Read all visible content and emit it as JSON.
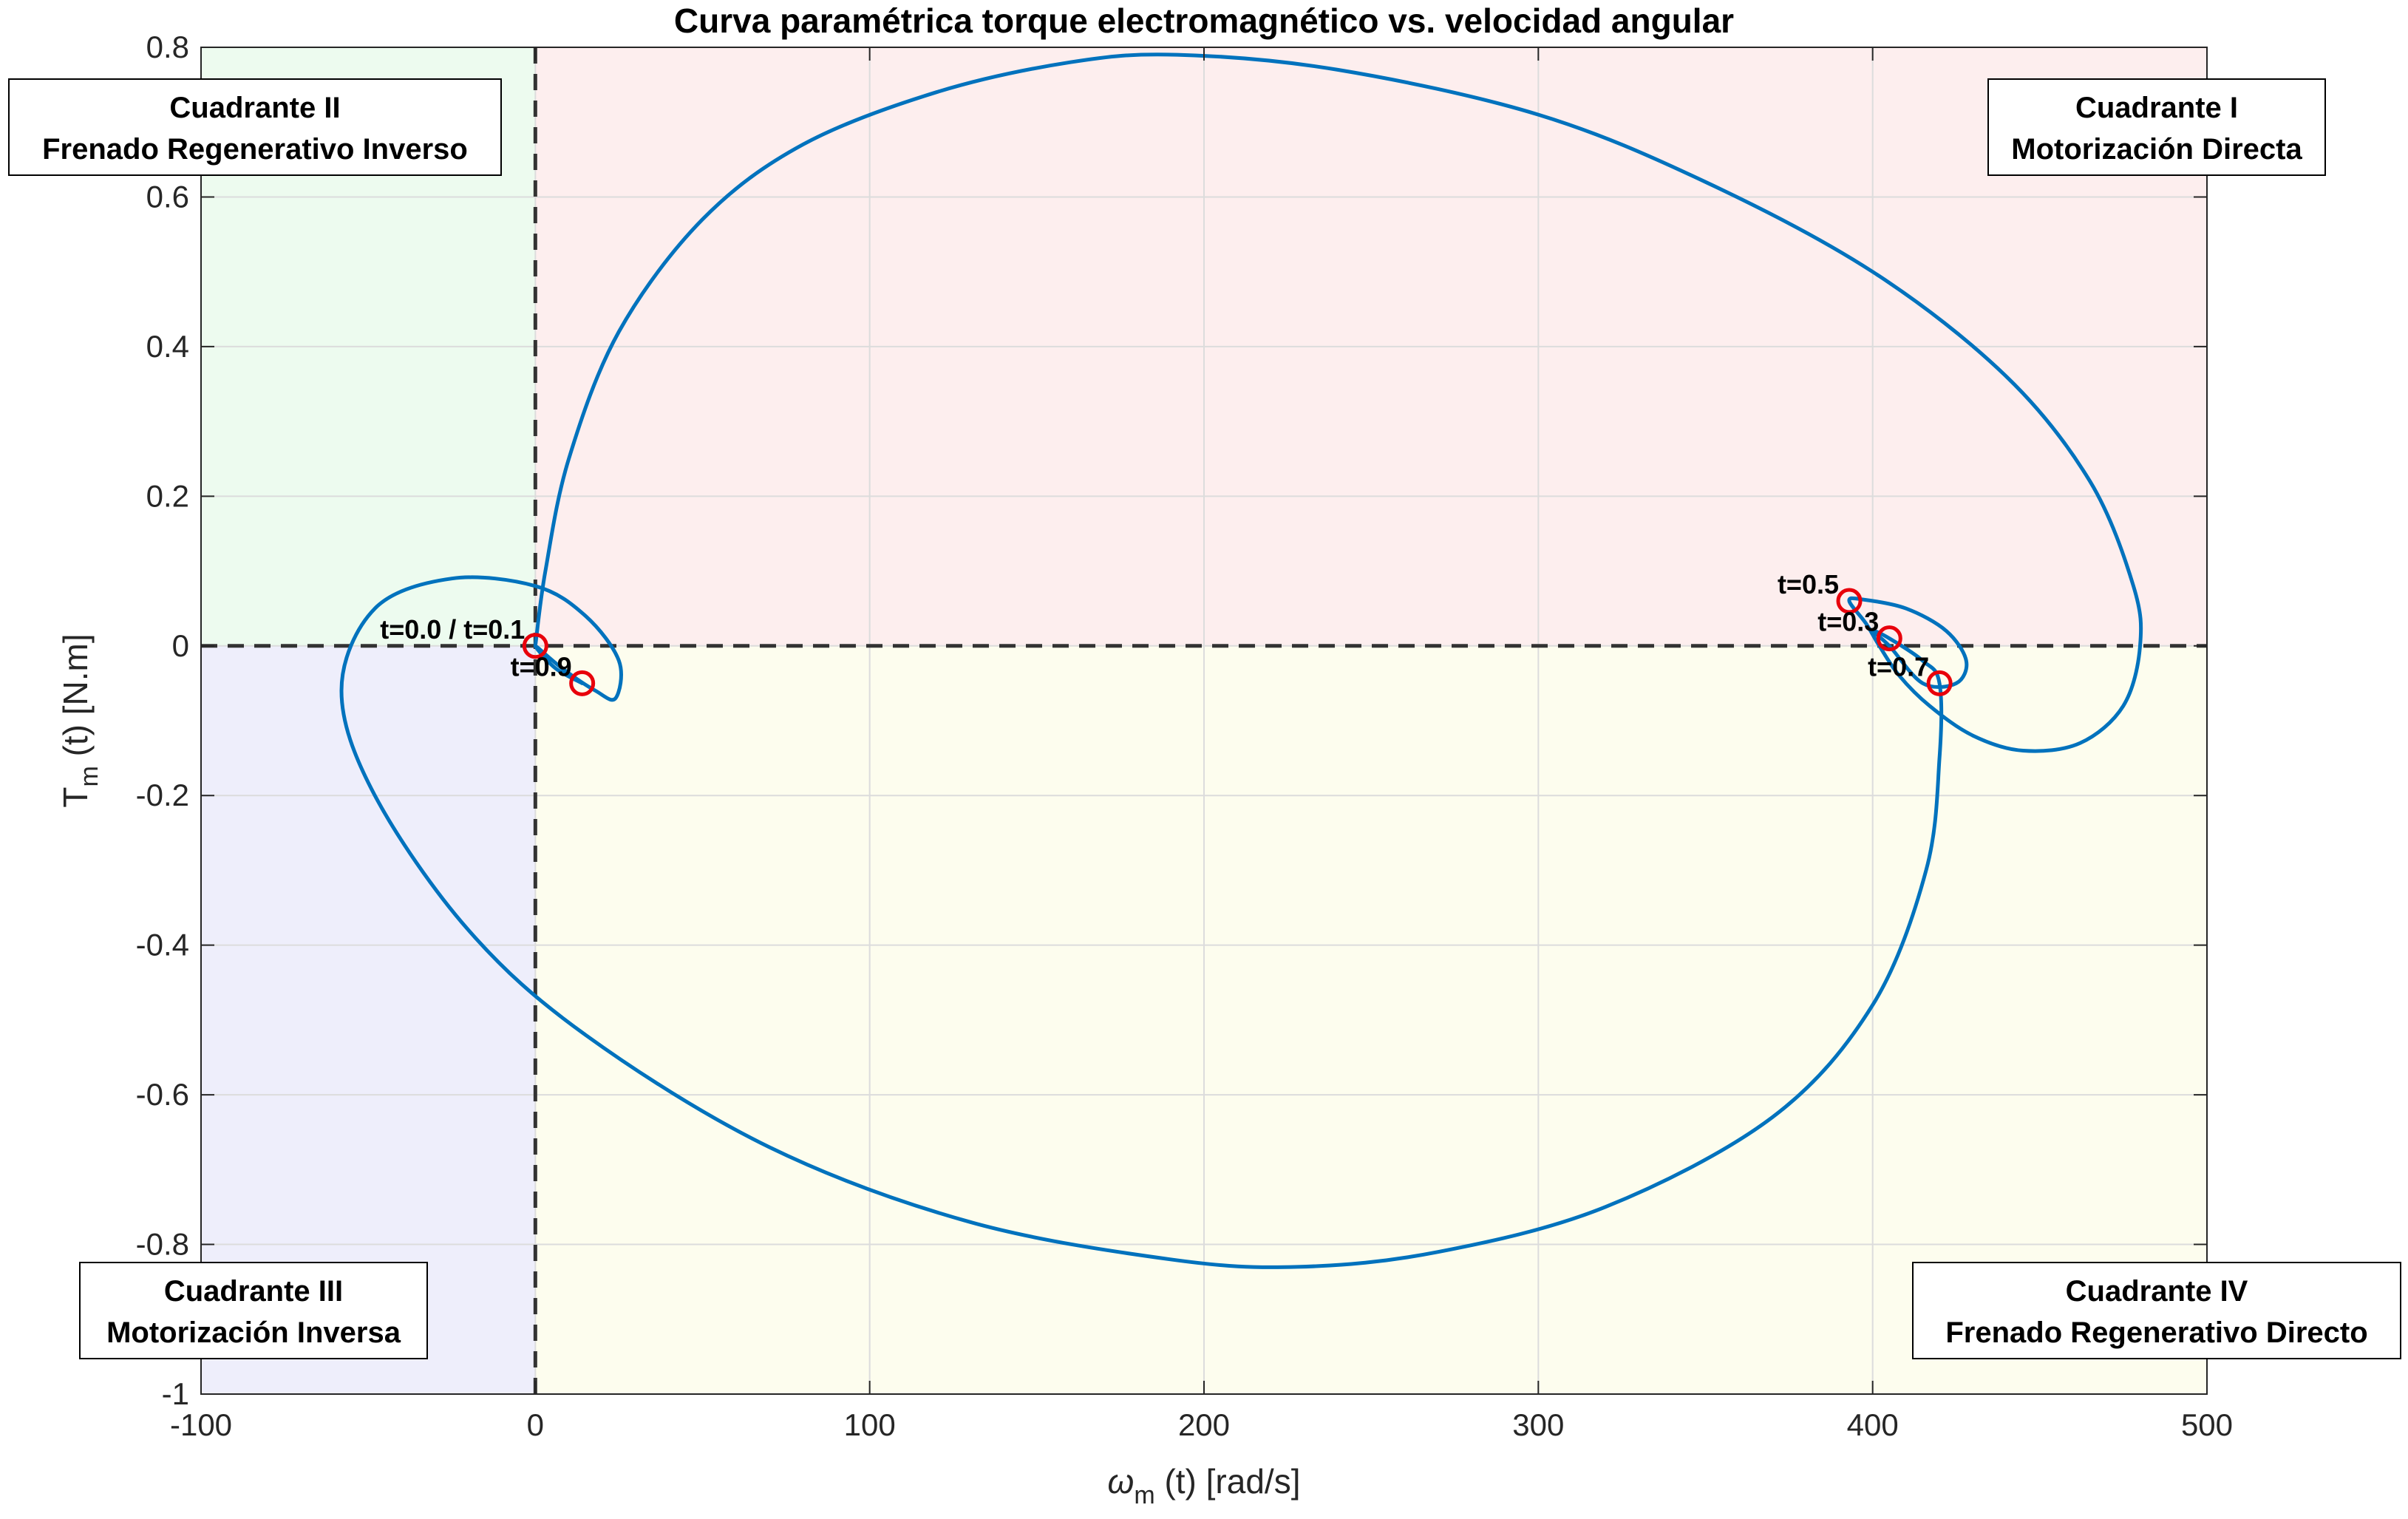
{
  "chart_data": {
    "type": "line",
    "title": "Curva paramétrica torque electromagnético vs. velocidad angular",
    "xlabel": {
      "symbol": "ω",
      "sub": "m",
      "rest": " (t) [rad/s]"
    },
    "ylabel": {
      "symbol": "T",
      "sub": "m",
      "rest": " (t) [N.m]"
    },
    "xlim": [
      -100,
      500
    ],
    "ylim": [
      -1,
      0.8
    ],
    "xticks": [
      "-100",
      "0",
      "100",
      "200",
      "300",
      "400",
      "500"
    ],
    "yticks": [
      "0.8",
      "0.6",
      "0.4",
      "0.2",
      "0",
      "-0.2",
      "-0.4",
      "-0.6",
      "-0.8",
      "-1"
    ],
    "grid": true,
    "series": [
      {
        "color": "#0072BD",
        "points": [
          [
            0,
            0
          ],
          [
            3,
            0.1
          ],
          [
            10,
            0.25
          ],
          [
            25,
            0.42
          ],
          [
            50,
            0.57
          ],
          [
            80,
            0.67
          ],
          [
            120,
            0.74
          ],
          [
            160,
            0.78
          ],
          [
            192,
            0.79
          ],
          [
            240,
            0.77
          ],
          [
            300,
            0.71
          ],
          [
            350,
            0.62
          ],
          [
            400,
            0.5
          ],
          [
            440,
            0.36
          ],
          [
            465,
            0.22
          ],
          [
            478,
            0.08
          ],
          [
            480,
            0.0
          ],
          [
            475,
            -0.08
          ],
          [
            462,
            -0.13
          ],
          [
            445,
            -0.14
          ],
          [
            430,
            -0.12
          ],
          [
            417,
            -0.08
          ],
          [
            408,
            -0.04
          ],
          [
            402,
            0.0
          ],
          [
            398,
            0.03
          ],
          [
            393,
            0.06
          ],
          [
            397,
            0.062
          ],
          [
            410,
            0.05
          ],
          [
            422,
            0.02
          ],
          [
            428,
            -0.02
          ],
          [
            425,
            -0.05
          ],
          [
            415,
            -0.05
          ],
          [
            405,
            0.0
          ],
          [
            400,
            0.02
          ],
          [
            405,
            0.01
          ],
          [
            415,
            -0.02
          ],
          [
            420,
            -0.05
          ],
          [
            420,
            -0.15
          ],
          [
            416,
            -0.3
          ],
          [
            400,
            -0.48
          ],
          [
            370,
            -0.63
          ],
          [
            320,
            -0.75
          ],
          [
            270,
            -0.81
          ],
          [
            228,
            -0.83
          ],
          [
            190,
            -0.82
          ],
          [
            130,
            -0.77
          ],
          [
            70,
            -0.67
          ],
          [
            15,
            -0.52
          ],
          [
            -20,
            -0.38
          ],
          [
            -48,
            -0.2
          ],
          [
            -58,
            -0.06
          ],
          [
            -48,
            0.05
          ],
          [
            -25,
            0.09
          ],
          [
            0,
            0.08
          ],
          [
            15,
            0.04
          ],
          [
            25,
            -0.02
          ],
          [
            24,
            -0.07
          ],
          [
            18,
            -0.06
          ],
          [
            8,
            -0.03
          ],
          [
            0,
            0
          ],
          [
            6,
            -0.03
          ],
          [
            14,
            -0.05
          ]
        ]
      }
    ],
    "markers": [
      {
        "label": "t=0.0 / t=0.1",
        "x": 0,
        "y": 0
      },
      {
        "label": "t=0.9",
        "x": 14,
        "y": -0.05
      },
      {
        "label": "t=0.5",
        "x": 393,
        "y": 0.06
      },
      {
        "label": "t=0.3",
        "x": 405,
        "y": 0.01
      },
      {
        "label": "t=0.7",
        "x": 420,
        "y": -0.05
      }
    ],
    "marker_color": "#E8000B",
    "reference_lines": {
      "x": 0,
      "y": 0,
      "style": "dashed",
      "color": "#333333"
    },
    "quadrants": [
      {
        "name": "Cuadrante I",
        "mode": "Motorización Directa",
        "fill": "#FDEEEE"
      },
      {
        "name": "Cuadrante II",
        "mode": "Frenado Regenerativo Inverso",
        "fill": "#EDFBEF"
      },
      {
        "name": "Cuadrante III",
        "mode": "Motorización Inversa",
        "fill": "#EEEEFB"
      },
      {
        "name": "Cuadrante IV",
        "mode": "Frenado Regenerativo Directo",
        "fill": "#FDFDEE"
      }
    ]
  }
}
